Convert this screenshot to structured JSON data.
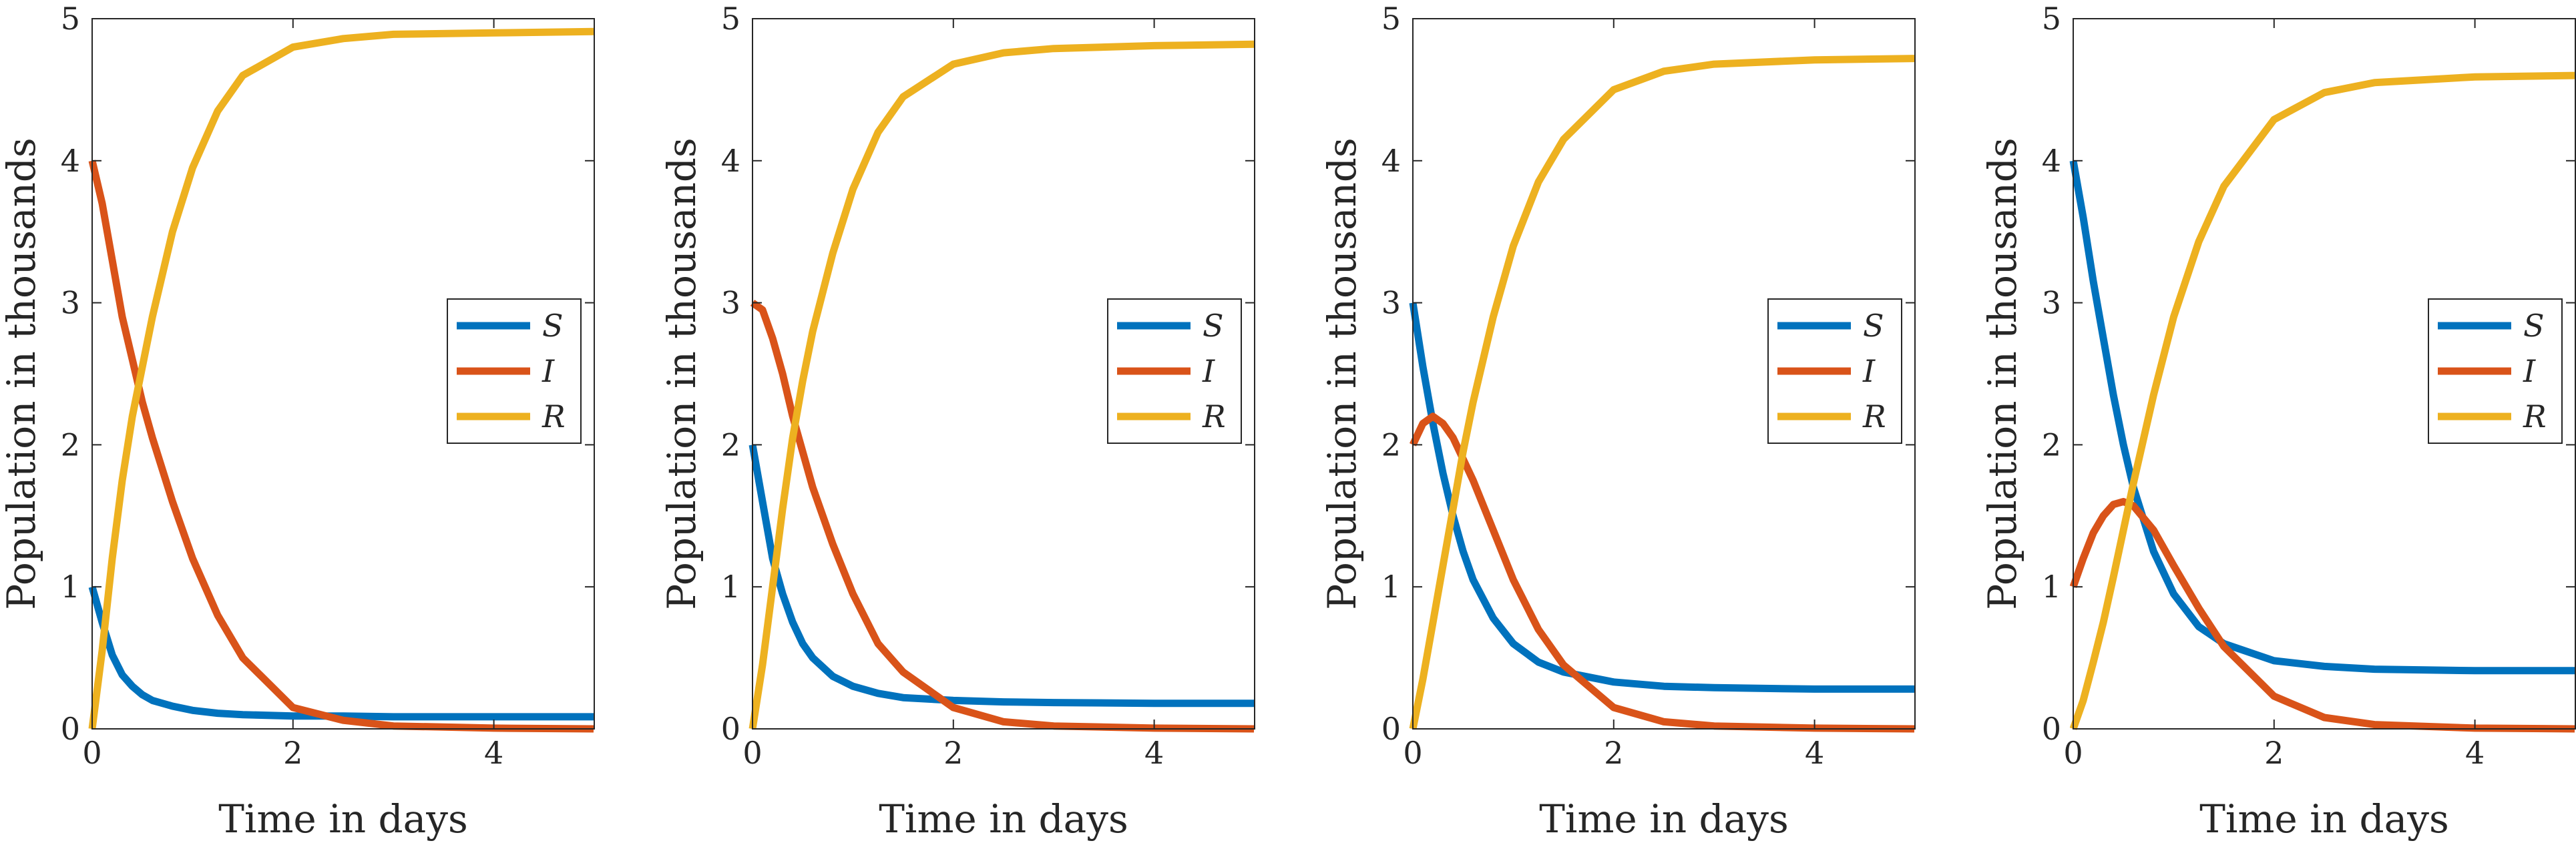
{
  "chart_data": [
    {
      "type": "line",
      "xlabel": "Time in days",
      "ylabel": "Population in thousands",
      "xlim": [
        0,
        5
      ],
      "ylim": [
        0,
        5
      ],
      "xticks": [
        "0",
        "2",
        "4"
      ],
      "yticks": [
        "0",
        "1",
        "2",
        "3",
        "4",
        "5"
      ],
      "legend": "right",
      "series": [
        {
          "name": "S",
          "color": "#0072BD",
          "x": [
            0,
            0.1,
            0.2,
            0.3,
            0.4,
            0.5,
            0.6,
            0.8,
            1.0,
            1.25,
            1.5,
            2,
            2.5,
            3,
            4,
            5
          ],
          "y": [
            1,
            0.75,
            0.52,
            0.38,
            0.3,
            0.24,
            0.2,
            0.16,
            0.13,
            0.11,
            0.1,
            0.09,
            0.09,
            0.085,
            0.085,
            0.085
          ]
        },
        {
          "name": "I",
          "color": "#D95319",
          "x": [
            0,
            0.1,
            0.2,
            0.3,
            0.4,
            0.5,
            0.6,
            0.8,
            1.0,
            1.25,
            1.5,
            2,
            2.5,
            3,
            4,
            5
          ],
          "y": [
            4,
            3.7,
            3.3,
            2.9,
            2.6,
            2.3,
            2.05,
            1.6,
            1.2,
            0.8,
            0.5,
            0.15,
            0.06,
            0.02,
            0.005,
            0
          ]
        },
        {
          "name": "R",
          "color": "#EDB120",
          "x": [
            0,
            0.1,
            0.2,
            0.3,
            0.4,
            0.5,
            0.6,
            0.8,
            1.0,
            1.25,
            1.5,
            2,
            2.5,
            3,
            4,
            5
          ],
          "y": [
            0,
            0.55,
            1.2,
            1.75,
            2.2,
            2.55,
            2.9,
            3.5,
            3.95,
            4.35,
            4.6,
            4.8,
            4.86,
            4.89,
            4.9,
            4.91
          ]
        }
      ]
    },
    {
      "type": "line",
      "xlabel": "Time in days",
      "ylabel": "Population in thousands",
      "xlim": [
        0,
        5
      ],
      "ylim": [
        0,
        5
      ],
      "xticks": [
        "0",
        "2",
        "4"
      ],
      "yticks": [
        "0",
        "1",
        "2",
        "3",
        "4",
        "5"
      ],
      "legend": "right",
      "series": [
        {
          "name": "S",
          "color": "#0072BD",
          "x": [
            0,
            0.1,
            0.2,
            0.3,
            0.4,
            0.5,
            0.6,
            0.8,
            1.0,
            1.25,
            1.5,
            2,
            2.5,
            3,
            4,
            5
          ],
          "y": [
            2,
            1.6,
            1.2,
            0.95,
            0.75,
            0.6,
            0.5,
            0.37,
            0.3,
            0.25,
            0.22,
            0.2,
            0.19,
            0.185,
            0.18,
            0.18
          ]
        },
        {
          "name": "I",
          "color": "#D95319",
          "x": [
            0,
            0.1,
            0.2,
            0.3,
            0.4,
            0.5,
            0.6,
            0.8,
            1.0,
            1.25,
            1.5,
            2,
            2.5,
            3,
            4,
            5
          ],
          "y": [
            3,
            2.95,
            2.75,
            2.5,
            2.2,
            1.95,
            1.7,
            1.3,
            0.95,
            0.6,
            0.4,
            0.15,
            0.05,
            0.02,
            0.005,
            0
          ]
        },
        {
          "name": "R",
          "color": "#EDB120",
          "x": [
            0,
            0.1,
            0.2,
            0.3,
            0.4,
            0.5,
            0.6,
            0.8,
            1.0,
            1.25,
            1.5,
            2,
            2.5,
            3,
            4,
            5
          ],
          "y": [
            0,
            0.45,
            1.0,
            1.55,
            2.05,
            2.45,
            2.8,
            3.35,
            3.8,
            4.2,
            4.45,
            4.68,
            4.76,
            4.79,
            4.81,
            4.82
          ]
        }
      ]
    },
    {
      "type": "line",
      "xlabel": "Time in days",
      "ylabel": "Population in thousands",
      "xlim": [
        0,
        5
      ],
      "ylim": [
        0,
        5
      ],
      "xticks": [
        "0",
        "2",
        "4"
      ],
      "yticks": [
        "0",
        "1",
        "2",
        "3",
        "4",
        "5"
      ],
      "legend": "right",
      "series": [
        {
          "name": "S",
          "color": "#0072BD",
          "x": [
            0,
            0.1,
            0.2,
            0.3,
            0.4,
            0.5,
            0.6,
            0.8,
            1.0,
            1.25,
            1.5,
            2,
            2.5,
            3,
            4,
            5
          ],
          "y": [
            3,
            2.55,
            2.15,
            1.8,
            1.5,
            1.25,
            1.05,
            0.78,
            0.6,
            0.47,
            0.4,
            0.33,
            0.3,
            0.29,
            0.28,
            0.28
          ]
        },
        {
          "name": "I",
          "color": "#D95319",
          "x": [
            0,
            0.1,
            0.2,
            0.3,
            0.4,
            0.5,
            0.6,
            0.8,
            1.0,
            1.25,
            1.5,
            2,
            2.5,
            3,
            4,
            5
          ],
          "y": [
            2,
            2.15,
            2.2,
            2.15,
            2.05,
            1.9,
            1.75,
            1.4,
            1.05,
            0.7,
            0.45,
            0.15,
            0.05,
            0.02,
            0.005,
            0
          ]
        },
        {
          "name": "R",
          "color": "#EDB120",
          "x": [
            0,
            0.1,
            0.2,
            0.3,
            0.4,
            0.5,
            0.6,
            0.8,
            1.0,
            1.25,
            1.5,
            2,
            2.5,
            3,
            4,
            5
          ],
          "y": [
            0,
            0.35,
            0.75,
            1.15,
            1.55,
            1.95,
            2.3,
            2.9,
            3.4,
            3.85,
            4.15,
            4.5,
            4.63,
            4.68,
            4.71,
            4.72
          ]
        }
      ]
    },
    {
      "type": "line",
      "xlabel": "Time in days",
      "ylabel": "Population in thousands",
      "xlim": [
        0,
        5
      ],
      "ylim": [
        0,
        5
      ],
      "xticks": [
        "0",
        "2",
        "4"
      ],
      "yticks": [
        "0",
        "1",
        "2",
        "3",
        "4",
        "5"
      ],
      "legend": "right",
      "series": [
        {
          "name": "S",
          "color": "#0072BD",
          "x": [
            0,
            0.1,
            0.2,
            0.3,
            0.4,
            0.5,
            0.6,
            0.8,
            1.0,
            1.25,
            1.5,
            2,
            2.5,
            3,
            4,
            5
          ],
          "y": [
            4,
            3.6,
            3.15,
            2.75,
            2.35,
            2.0,
            1.7,
            1.25,
            0.95,
            0.72,
            0.6,
            0.48,
            0.44,
            0.42,
            0.41,
            0.41
          ]
        },
        {
          "name": "I",
          "color": "#D95319",
          "x": [
            0,
            0.1,
            0.2,
            0.3,
            0.4,
            0.5,
            0.6,
            0.8,
            1.0,
            1.25,
            1.5,
            2,
            2.5,
            3,
            4,
            5
          ],
          "y": [
            1,
            1.2,
            1.38,
            1.5,
            1.58,
            1.6,
            1.57,
            1.4,
            1.15,
            0.85,
            0.58,
            0.23,
            0.08,
            0.03,
            0.005,
            0
          ]
        },
        {
          "name": "R",
          "color": "#EDB120",
          "x": [
            0,
            0.1,
            0.2,
            0.3,
            0.4,
            0.5,
            0.6,
            0.8,
            1.0,
            1.25,
            1.5,
            2,
            2.5,
            3,
            4,
            5
          ],
          "y": [
            0,
            0.2,
            0.47,
            0.75,
            1.07,
            1.4,
            1.73,
            2.35,
            2.9,
            3.43,
            3.82,
            4.29,
            4.48,
            4.55,
            4.59,
            4.6
          ]
        }
      ]
    }
  ]
}
